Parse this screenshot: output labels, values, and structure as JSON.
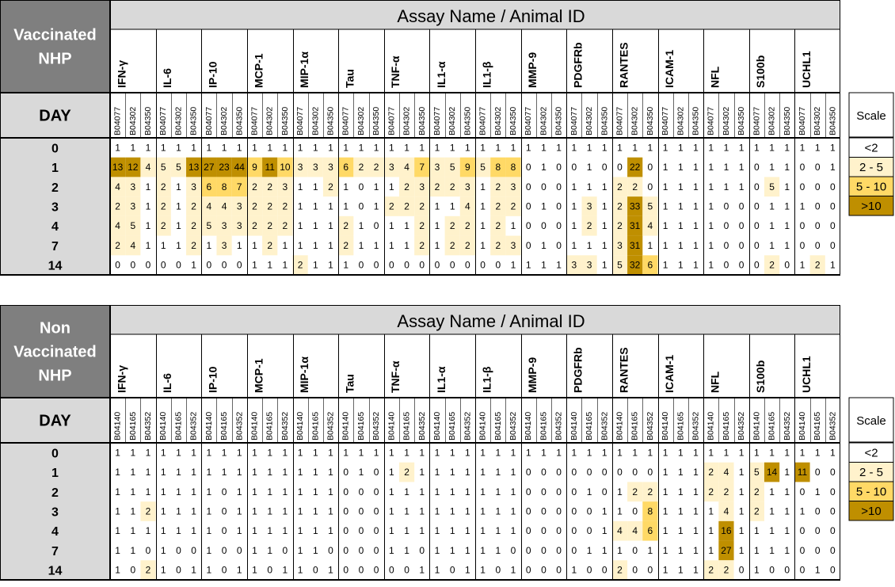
{
  "chart_data": [
    {
      "type": "heatmap",
      "title": "Assay Name / Animal ID",
      "group_label_lines": [
        "Vaccinated",
        "NHP"
      ],
      "day_header": "DAY",
      "assays": [
        "IFN-γ",
        "IL-6",
        "IP-10",
        "MCP-1",
        "MIP-1α",
        "Tau",
        "TNF-α",
        "IL1-α",
        "IL1-β",
        "MMP-9",
        "PDGFRb",
        "RANTES",
        "ICAM-1",
        "NFL",
        "S100b",
        "UCHL1"
      ],
      "animals": [
        "B04077",
        "B04302",
        "B04350"
      ],
      "days": [
        "0",
        "1",
        "2",
        "3",
        "4",
        "7",
        "14"
      ],
      "values": [
        [
          1,
          1,
          1,
          1,
          1,
          1,
          1,
          1,
          1,
          1,
          1,
          1,
          1,
          1,
          1,
          1,
          1,
          1,
          1,
          1,
          1,
          1,
          1,
          1,
          1,
          1,
          1,
          1,
          1,
          1,
          1,
          1,
          1,
          1,
          1,
          1,
          1,
          1,
          1,
          1,
          1,
          1,
          1,
          1,
          1,
          1,
          1,
          1
        ],
        [
          13,
          12,
          4,
          5,
          5,
          13,
          27,
          23,
          44,
          9,
          11,
          10,
          3,
          3,
          3,
          6,
          2,
          2,
          3,
          4,
          7,
          3,
          5,
          9,
          5,
          8,
          8,
          0,
          1,
          0,
          0,
          1,
          0,
          0,
          22,
          0,
          1,
          1,
          1,
          1,
          1,
          1,
          0,
          1,
          1,
          0,
          0,
          1
        ],
        [
          4,
          3,
          1,
          2,
          1,
          3,
          6,
          8,
          7,
          2,
          2,
          3,
          1,
          1,
          2,
          1,
          0,
          1,
          1,
          2,
          3,
          2,
          2,
          3,
          1,
          2,
          3,
          0,
          0,
          0,
          1,
          1,
          1,
          2,
          2,
          0,
          1,
          1,
          1,
          1,
          1,
          1,
          0,
          5,
          1,
          0,
          0,
          0
        ],
        [
          2,
          3,
          1,
          2,
          1,
          2,
          4,
          4,
          3,
          2,
          2,
          2,
          1,
          1,
          1,
          1,
          0,
          1,
          2,
          2,
          2,
          1,
          1,
          4,
          1,
          2,
          2,
          0,
          1,
          0,
          1,
          3,
          1,
          2,
          33,
          5,
          1,
          1,
          1,
          1,
          0,
          0,
          0,
          1,
          1,
          1,
          0,
          0
        ],
        [
          4,
          5,
          1,
          2,
          1,
          2,
          5,
          3,
          3,
          2,
          2,
          2,
          1,
          1,
          1,
          2,
          1,
          0,
          1,
          1,
          2,
          1,
          2,
          2,
          1,
          2,
          1,
          0,
          0,
          0,
          1,
          2,
          1,
          2,
          31,
          4,
          1,
          1,
          1,
          1,
          0,
          0,
          0,
          1,
          1,
          0,
          0,
          0
        ],
        [
          2,
          4,
          1,
          1,
          1,
          2,
          1,
          3,
          1,
          1,
          2,
          1,
          1,
          1,
          1,
          2,
          1,
          1,
          1,
          1,
          2,
          1,
          2,
          2,
          1,
          2,
          3,
          0,
          1,
          0,
          1,
          1,
          1,
          3,
          31,
          1,
          1,
          1,
          1,
          1,
          0,
          0,
          0,
          1,
          1,
          0,
          0,
          0
        ],
        [
          0,
          0,
          0,
          0,
          0,
          1,
          0,
          0,
          0,
          1,
          1,
          1,
          2,
          1,
          1,
          1,
          0,
          0,
          0,
          0,
          0,
          0,
          0,
          0,
          0,
          0,
          1,
          1,
          1,
          1,
          3,
          3,
          1,
          5,
          32,
          6,
          1,
          1,
          1,
          1,
          0,
          0,
          0,
          2,
          0,
          1,
          2,
          1
        ]
      ]
    },
    {
      "type": "heatmap",
      "title": "Assay Name / Animal ID",
      "group_label_lines": [
        "Non",
        "Vaccinated",
        "NHP"
      ],
      "day_header": "DAY",
      "assays": [
        "IFN-γ",
        "IL-6",
        "IP-10",
        "MCP-1",
        "MIP-1α",
        "Tau",
        "TNF-α",
        "IL1-α",
        "IL1-β",
        "MMP-9",
        "PDGFRb",
        "RANTES",
        "ICAM-1",
        "NFL",
        "S100b",
        "UCHL1"
      ],
      "animals": [
        "B04140",
        "B04165",
        "B04352"
      ],
      "days": [
        "0",
        "1",
        "2",
        "3",
        "4",
        "7",
        "14"
      ],
      "values": [
        [
          1,
          1,
          1,
          1,
          1,
          1,
          1,
          1,
          1,
          1,
          1,
          1,
          1,
          1,
          1,
          1,
          1,
          1,
          1,
          1,
          1,
          1,
          1,
          1,
          1,
          1,
          1,
          1,
          1,
          1,
          1,
          1,
          1,
          1,
          1,
          1,
          1,
          1,
          1,
          1,
          1,
          1,
          1,
          1,
          1,
          1,
          1,
          1
        ],
        [
          1,
          1,
          1,
          1,
          1,
          1,
          1,
          1,
          1,
          1,
          1,
          1,
          1,
          1,
          1,
          0,
          1,
          0,
          1,
          2,
          1,
          1,
          1,
          1,
          1,
          1,
          1,
          0,
          0,
          0,
          0,
          0,
          0,
          0,
          0,
          0,
          1,
          1,
          1,
          2,
          4,
          1,
          5,
          14,
          1,
          11,
          0,
          0
        ],
        [
          1,
          1,
          1,
          1,
          1,
          1,
          1,
          0,
          1,
          1,
          1,
          1,
          1,
          1,
          1,
          0,
          0,
          0,
          1,
          1,
          1,
          1,
          1,
          1,
          1,
          1,
          1,
          0,
          0,
          0,
          0,
          1,
          0,
          1,
          2,
          2,
          1,
          1,
          1,
          2,
          2,
          1,
          2,
          1,
          1,
          0,
          1,
          0
        ],
        [
          1,
          1,
          2,
          1,
          1,
          1,
          1,
          0,
          1,
          1,
          1,
          1,
          1,
          1,
          1,
          0,
          0,
          0,
          1,
          1,
          1,
          1,
          1,
          1,
          1,
          1,
          1,
          0,
          0,
          0,
          0,
          0,
          1,
          1,
          0,
          8,
          1,
          1,
          1,
          1,
          4,
          1,
          2,
          1,
          1,
          1,
          0,
          0
        ],
        [
          1,
          1,
          1,
          1,
          1,
          1,
          1,
          0,
          1,
          1,
          1,
          1,
          1,
          1,
          1,
          0,
          0,
          0,
          1,
          1,
          1,
          1,
          1,
          1,
          1,
          1,
          1,
          0,
          0,
          0,
          0,
          0,
          1,
          4,
          4,
          6,
          1,
          1,
          1,
          1,
          16,
          1,
          1,
          1,
          1,
          0,
          0,
          0
        ],
        [
          1,
          1,
          0,
          1,
          0,
          0,
          1,
          0,
          0,
          1,
          1,
          0,
          1,
          1,
          0,
          0,
          0,
          0,
          1,
          1,
          0,
          1,
          1,
          1,
          1,
          1,
          0,
          0,
          0,
          0,
          0,
          1,
          1,
          1,
          0,
          1,
          1,
          1,
          1,
          1,
          27,
          1,
          1,
          1,
          1,
          0,
          0,
          0
        ],
        [
          1,
          0,
          2,
          1,
          0,
          1,
          1,
          0,
          1,
          1,
          0,
          1,
          1,
          0,
          1,
          0,
          0,
          0,
          0,
          0,
          1,
          1,
          0,
          1,
          1,
          0,
          1,
          0,
          0,
          0,
          1,
          0,
          0,
          2,
          0,
          0,
          1,
          1,
          1,
          2,
          2,
          0,
          1,
          0,
          0,
          0,
          1,
          0
        ]
      ]
    }
  ],
  "scale": {
    "title": "Scale",
    "entries": [
      {
        "label": "<2",
        "color": "#ffffff"
      },
      {
        "label": "2 - 5",
        "color": "#fff2cc"
      },
      {
        "label": "5 - 10",
        "color": "#ffd966"
      },
      {
        "label": ">10",
        "color": "#bf8f00"
      }
    ]
  },
  "colors": {
    "header_gray": "#d9d9d9",
    "group_label_bg": "#7f7f7f",
    "grid_line": "#000000"
  }
}
